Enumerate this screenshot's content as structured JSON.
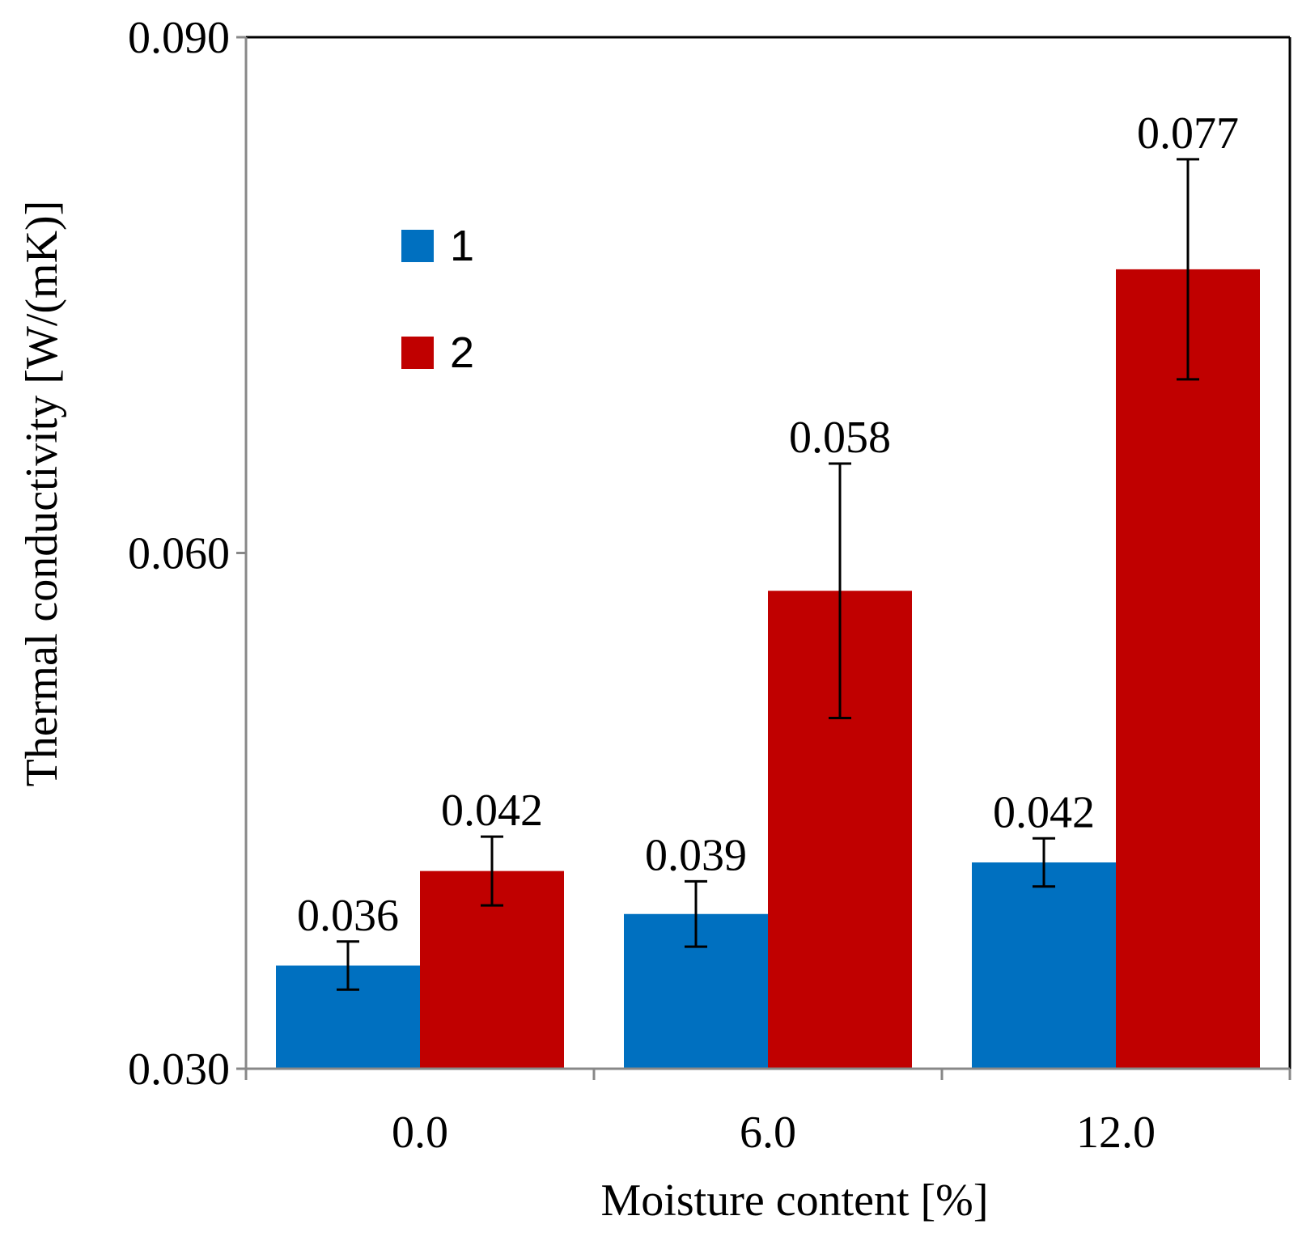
{
  "chart_data": {
    "type": "bar",
    "title": "",
    "xlabel": "Moisture content [%]",
    "ylabel": "Thermal conductivity [W/(mK)]",
    "categories": [
      "0.0",
      "6.0",
      "12.0"
    ],
    "ylim": [
      0.03,
      0.09
    ],
    "yticks": [
      0.03,
      0.06,
      0.09
    ],
    "ytick_labels": [
      "0.030",
      "0.060",
      "0.090"
    ],
    "grid": false,
    "legend_position": "top-left",
    "series": [
      {
        "name": "1",
        "color": "#0070C0",
        "values": [
          0.036,
          0.039,
          0.042
        ],
        "labels": [
          "0.036",
          "0.039",
          "0.042"
        ],
        "error": [
          0.0014,
          0.0019,
          0.0014
        ]
      },
      {
        "name": "2",
        "color": "#C00000",
        "values": [
          0.0415,
          0.0578,
          0.0765
        ],
        "labels": [
          "0.042",
          "0.058",
          "0.077"
        ],
        "error": [
          0.002,
          0.0074,
          0.0064
        ]
      }
    ]
  }
}
